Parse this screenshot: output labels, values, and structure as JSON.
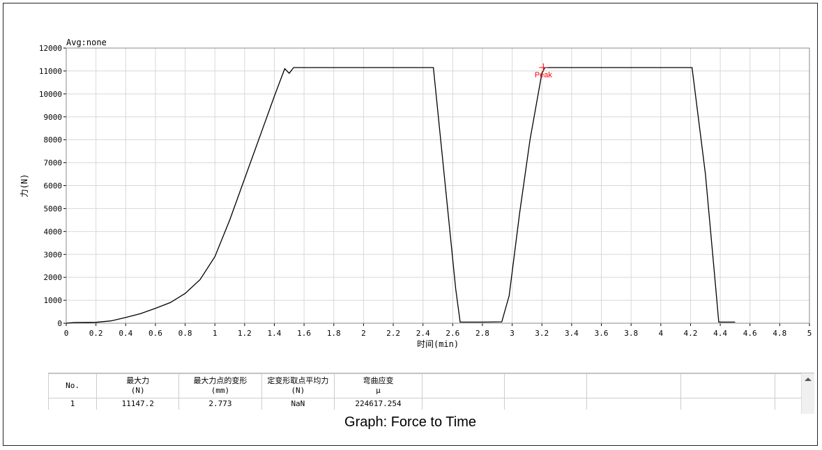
{
  "chart_data": {
    "type": "line",
    "annotation_top": "Avg:none",
    "xlabel": "时间(min)",
    "ylabel": "力(N)",
    "xlim": [
      0,
      5
    ],
    "ylim": [
      0,
      12000
    ],
    "x_ticks": [
      "0",
      "0.2",
      "0.4",
      "0.6",
      "0.8",
      "1",
      "1.2",
      "1.4",
      "1.6",
      "1.8",
      "2",
      "2.2",
      "2.4",
      "2.6",
      "2.8",
      "3",
      "3.2",
      "3.4",
      "3.6",
      "3.8",
      "4",
      "4.2",
      "4.4",
      "4.6",
      "4.8",
      "5"
    ],
    "y_ticks": [
      "0",
      "1000",
      "2000",
      "3000",
      "4000",
      "5000",
      "6000",
      "7000",
      "8000",
      "9000",
      "10000",
      "11000",
      "12000"
    ],
    "grid": true,
    "series": [
      {
        "color": "#000000",
        "x": [
          0,
          0.05,
          0.2,
          0.3,
          0.4,
          0.5,
          0.6,
          0.7,
          0.8,
          0.9,
          1.0,
          1.1,
          1.2,
          1.3,
          1.4,
          1.47,
          1.5,
          1.53,
          1.6,
          2.0,
          2.3,
          2.47,
          2.55,
          2.62,
          2.65,
          2.8,
          2.93,
          2.98,
          3.05,
          3.12,
          3.2,
          3.22,
          3.5,
          4.0,
          4.21,
          4.3,
          4.37,
          4.39,
          4.5
        ],
        "y": [
          0,
          30,
          40,
          100,
          250,
          420,
          650,
          900,
          1300,
          1900,
          2900,
          4500,
          6300,
          8100,
          9900,
          11100,
          10900,
          11150,
          11150,
          11150,
          11150,
          11150,
          6000,
          1500,
          50,
          50,
          60,
          1200,
          4800,
          8000,
          10900,
          11150,
          11150,
          11150,
          11150,
          6500,
          1500,
          50,
          50
        ]
      }
    ],
    "annotations": [
      {
        "label": "Peak",
        "x": 3.21,
        "y": 11150,
        "color": "#ff0000"
      }
    ]
  },
  "table": {
    "headers": [
      {
        "line1": "No.",
        "line2": ""
      },
      {
        "line1": "最大力",
        "line2": "(N)"
      },
      {
        "line1": "最大力点的变形",
        "line2": "(mm)"
      },
      {
        "line1": "定变形取点平均力",
        "line2": "(N)"
      },
      {
        "line1": "弯曲应变",
        "line2": "μ"
      },
      {
        "line1": "",
        "line2": ""
      },
      {
        "line1": "",
        "line2": ""
      },
      {
        "line1": "",
        "line2": ""
      },
      {
        "line1": "",
        "line2": ""
      },
      {
        "line1": "",
        "line2": ""
      }
    ],
    "rows": [
      [
        "1",
        "11147.2",
        "2.773",
        "NaN",
        "224617.254",
        "",
        "",
        "",
        "",
        ""
      ]
    ]
  },
  "caption": "Graph: Force to Time"
}
